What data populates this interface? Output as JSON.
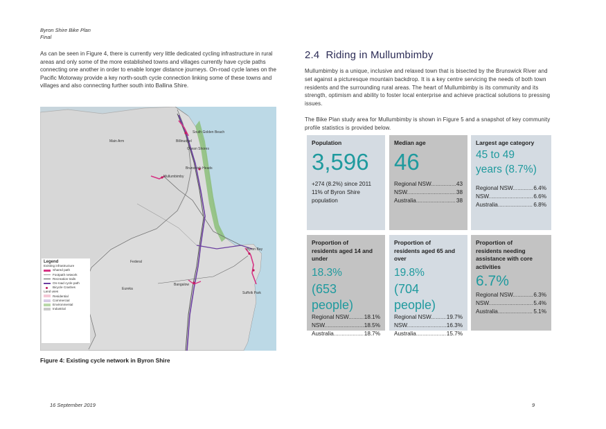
{
  "header": {
    "line1": "Byron Shire Bike Plan",
    "line2": "Final"
  },
  "left_paragraph": "As can be seen in Figure 4, there is currently very little dedicated cycling infrastructure in rural areas and only some of the more established towns and villages currently have cycle paths connecting one another in order to enable longer distance journeys. On-road cycle lanes on the Pacific Motorway provide a key north-south cycle connection linking some of these towns and villages and also connecting further south into Ballina Shire.",
  "map": {
    "place_labels": {
      "south_golden_beach": "South Golden Beach",
      "main_arm": "Main Arm",
      "billinudgel": "Billinudgel",
      "ocean_shores": "Ocean Shores",
      "brunswick_heads": "Brunswick Heads",
      "mullumbimby": "Mullumbimby",
      "byron_bay": "Byron Bay",
      "federal": "Federal",
      "bangalow": "Bangalow",
      "eureka": "Eureka",
      "suffolk_park": "Suffolk Park"
    },
    "legend": {
      "title": "Legend",
      "section1": "Existing infrastructure",
      "items": [
        "Shared path",
        "Footpath network",
        "Recreation trails",
        "On-road cycle path",
        "Bicycle Crashes"
      ],
      "section2": "Land uses",
      "land_uses": [
        "Residential",
        "Commercial",
        "Environmental",
        "Industrial"
      ]
    }
  },
  "figure_caption": "Figure 4: Existing cycle network in Byron Shire",
  "section": {
    "number": "2.4",
    "title": "Riding in Mullumbimby",
    "paragraph1": "Mullumbimby is a unique, inclusive and relaxed town that is bisected by the Brunswick River and set against a picturesque mountain backdrop. It is a key centre servicing the needs of both town residents and the surrounding rural areas. The heart of Mullumbimby is its community and its strength, optimism and ability to foster local enterprise and achieve practical solutions to pressing issues.",
    "paragraph2": "The Bike Plan study area for Mullumbimby is shown in Figure 5 and a snapshot of key community profile statistics is provided below."
  },
  "cards": {
    "population": {
      "title": "Population",
      "value": "3,596",
      "line1": "+274 (8.2%) since 2011",
      "line2": "11% of Byron Shire",
      "line3": "population"
    },
    "median_age": {
      "title": "Median age",
      "value": "46",
      "rows": [
        [
          "Regional NSW",
          "43"
        ],
        [
          "NSW",
          "38"
        ],
        [
          "Australia",
          "38"
        ]
      ]
    },
    "largest_age": {
      "title": "Largest age category",
      "value_line1": "45 to 49",
      "value_line2": "years (8.7%)",
      "rows": [
        [
          "Regional NSW",
          "6.4%"
        ],
        [
          "NSW",
          "6.6%"
        ],
        [
          "Australia",
          "6.8%"
        ]
      ]
    },
    "aged14": {
      "title_line1": "Proportion of",
      "title_line2": "residents aged 14 and",
      "title_line3": "under",
      "value_line1": "18.3%",
      "value_line2": "(653 people)",
      "rows": [
        [
          "Regional NSW",
          "18.1%"
        ],
        [
          "NSW",
          "18.5%"
        ],
        [
          "Australia",
          "18.7%"
        ]
      ]
    },
    "aged65": {
      "title_line1": "Proportion of",
      "title_line2": "residents aged 65 and",
      "title_line3": "over",
      "value_line1": "19.8%",
      "value_line2": "(704 people)",
      "rows": [
        [
          "Regional NSW",
          "19.7%"
        ],
        [
          "NSW",
          "16.3%"
        ],
        [
          "Australia",
          "15.7%"
        ]
      ]
    },
    "assistance": {
      "title_line1": "Proportion of",
      "title_line2": "residents needing",
      "title_line3": "assistance with core",
      "title_line4": "activities",
      "value": "6.7%",
      "rows": [
        [
          "Regional NSW",
          "6.3%"
        ],
        [
          "NSW",
          "5.4%"
        ],
        [
          "Australia",
          "5.1%"
        ]
      ]
    }
  },
  "footer": {
    "date": "16 September 2019",
    "page": "9"
  },
  "colors": {
    "accent_teal": "#1f9a9e",
    "heading_navy": "#2b2b55",
    "card_light": "#d4dbe2",
    "card_dark": "#c3c3c3",
    "cycle_path": "#d63384"
  }
}
